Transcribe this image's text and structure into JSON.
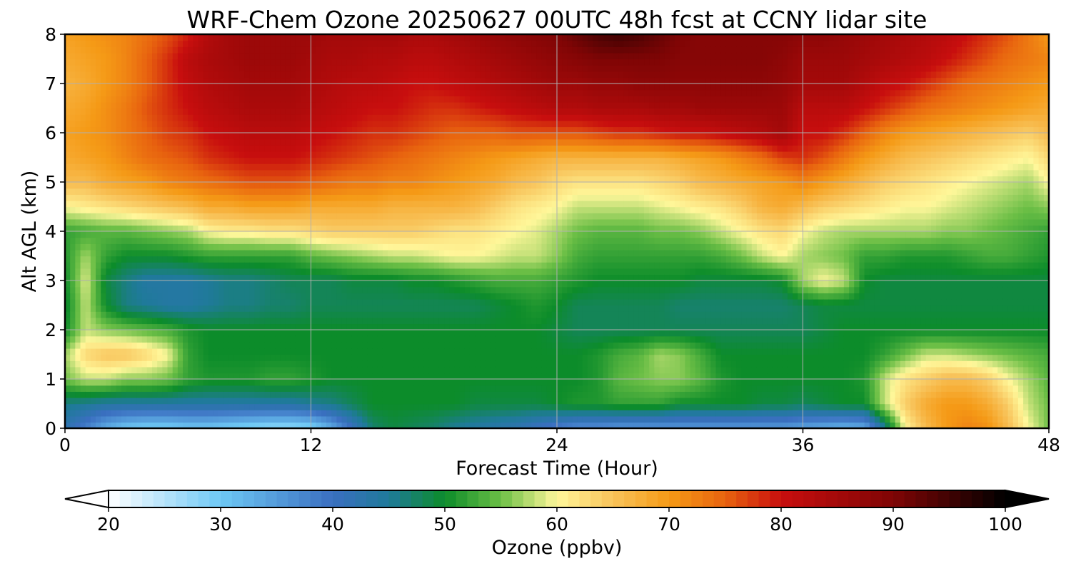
{
  "chart_data": {
    "type": "heatmap",
    "title": "WRF-Chem Ozone  20250627 00UTC 48h fcst at CCNY lidar site",
    "xlabel": "Forecast Time (Hour)",
    "ylabel": "Alt AGL (km)",
    "xlim": [
      0,
      48
    ],
    "ylim": [
      0,
      8
    ],
    "x_ticks": [
      "0",
      "12",
      "24",
      "36",
      "48"
    ],
    "y_ticks": [
      "0",
      "1",
      "2",
      "3",
      "4",
      "5",
      "6",
      "7",
      "8"
    ],
    "grid": true,
    "x_hours": [
      0,
      1,
      2,
      3,
      4,
      5,
      6,
      7,
      8,
      9,
      10,
      11,
      12,
      13,
      14,
      15,
      16,
      17,
      18,
      19,
      20,
      21,
      22,
      23,
      24,
      25,
      26,
      27,
      28,
      29,
      30,
      31,
      32,
      33,
      34,
      35,
      36,
      37,
      38,
      39,
      40,
      41,
      42,
      43,
      44,
      45,
      46,
      47,
      48
    ],
    "y_km": [
      0,
      0.5,
      1,
      1.5,
      2,
      2.5,
      3,
      3.5,
      4,
      4.5,
      5,
      5.5,
      6,
      6.5,
      7,
      7.5,
      8
    ],
    "ozone_ppbv": [
      [
        42,
        38,
        33,
        30,
        29,
        29,
        30,
        30,
        29,
        28,
        27,
        27,
        28,
        33,
        40,
        47,
        49,
        48,
        47,
        45,
        44,
        43,
        42,
        40,
        38,
        36,
        36,
        35,
        35,
        35,
        35,
        35,
        35,
        35,
        35,
        35,
        34,
        33,
        32,
        33,
        45,
        60,
        66,
        70,
        72,
        71,
        66,
        60,
        55
      ],
      [
        46,
        45,
        44,
        44,
        44,
        44,
        44,
        44,
        44,
        44,
        44,
        44,
        45,
        46,
        48,
        50,
        50,
        50,
        50,
        50,
        49,
        49,
        49,
        49,
        50,
        51,
        51,
        52,
        52,
        52,
        50,
        50,
        50,
        50,
        49,
        49,
        48,
        49,
        50,
        50,
        58,
        64,
        68,
        70,
        70,
        68,
        64,
        58,
        55
      ],
      [
        55,
        58,
        58,
        56,
        56,
        55,
        52,
        51,
        51,
        51,
        52,
        52,
        51,
        50,
        50,
        50,
        50,
        50,
        50,
        50,
        50,
        50,
        50,
        50,
        50,
        50,
        51,
        54,
        55,
        56,
        56,
        54,
        51,
        50,
        50,
        50,
        50,
        50,
        50,
        51,
        58,
        62,
        64,
        66,
        66,
        64,
        60,
        57,
        54
      ],
      [
        57,
        63,
        65,
        65,
        63,
        60,
        52,
        50,
        50,
        50,
        50,
        50,
        50,
        50,
        50,
        50,
        50,
        50,
        50,
        50,
        50,
        50,
        50,
        50,
        50,
        50,
        51,
        53,
        54,
        57,
        56,
        53,
        50,
        50,
        50,
        50,
        50,
        50,
        50,
        50,
        52,
        55,
        58,
        58,
        57,
        56,
        55,
        54,
        53
      ],
      [
        50,
        58,
        56,
        55,
        54,
        53,
        51,
        50,
        50,
        50,
        50,
        50,
        50,
        50,
        50,
        50,
        50,
        50,
        50,
        50,
        50,
        50,
        50,
        50,
        49,
        48,
        48,
        48,
        48,
        48,
        48,
        48,
        48,
        48,
        48,
        48,
        48,
        49,
        50,
        50,
        50,
        50,
        50,
        50,
        50,
        50,
        50,
        50,
        50
      ],
      [
        49,
        58,
        50,
        46,
        45,
        44,
        44,
        45,
        46,
        46,
        47,
        47,
        48,
        48,
        48,
        48,
        48,
        48,
        48,
        48,
        48,
        49,
        50,
        51,
        50,
        48,
        48,
        48,
        48,
        48,
        47,
        47,
        47,
        47,
        47,
        47,
        48,
        49,
        49,
        49,
        49,
        49,
        49,
        49,
        49,
        49,
        49,
        49,
        49
      ],
      [
        50,
        59,
        49,
        46,
        44,
        44,
        44,
        45,
        46,
        46,
        47,
        48,
        48,
        48,
        49,
        49,
        49,
        50,
        50,
        51,
        52,
        53,
        53,
        53,
        52,
        51,
        50,
        50,
        50,
        50,
        50,
        49,
        49,
        49,
        49,
        50,
        57,
        60,
        58,
        50,
        49,
        49,
        49,
        49,
        49,
        49,
        49,
        49,
        49
      ],
      [
        51,
        57,
        52,
        50,
        50,
        50,
        51,
        52,
        52,
        52,
        52,
        52,
        54,
        55,
        56,
        57,
        58,
        58,
        59,
        60,
        60,
        59,
        58,
        58,
        56,
        53,
        52,
        52,
        52,
        52,
        52,
        52,
        53,
        55,
        58,
        60,
        57,
        56,
        55,
        52,
        52,
        51,
        51,
        51,
        52,
        53,
        53,
        52,
        51
      ],
      [
        52,
        53,
        54,
        54,
        55,
        56,
        57,
        60,
        61,
        61,
        62,
        62,
        63,
        64,
        64,
        64,
        64,
        64,
        63,
        62,
        62,
        61,
        60,
        59,
        57,
        55,
        54,
        54,
        54,
        55,
        55,
        56,
        58,
        60,
        62,
        63,
        60,
        58,
        57,
        57,
        57,
        57,
        57,
        56,
        56,
        55,
        54,
        53,
        52
      ],
      [
        60,
        61,
        62,
        63,
        64,
        65,
        66,
        68,
        68,
        69,
        69,
        69,
        68,
        68,
        68,
        68,
        67,
        67,
        67,
        67,
        66,
        64,
        62,
        61,
        60,
        58,
        58,
        58,
        58,
        59,
        60,
        61,
        62,
        64,
        67,
        68,
        66,
        64,
        63,
        62,
        61,
        60,
        60,
        59,
        58,
        57,
        56,
        55,
        56
      ],
      [
        66,
        66,
        68,
        69,
        70,
        72,
        73,
        74,
        75,
        76,
        76,
        76,
        75,
        74,
        73,
        73,
        72,
        72,
        71,
        70,
        69,
        68,
        66,
        65,
        63,
        62,
        62,
        62,
        62,
        63,
        64,
        66,
        67,
        68,
        69,
        70,
        72,
        70,
        68,
        66,
        64,
        63,
        62,
        61,
        60,
        59,
        58,
        57,
        60
      ],
      [
        68,
        69,
        70,
        72,
        74,
        75,
        76,
        78,
        79,
        80,
        80,
        80,
        79,
        78,
        77,
        76,
        75,
        74,
        73,
        72,
        71,
        70,
        69,
        68,
        67,
        67,
        67,
        67,
        67,
        67,
        68,
        69,
        70,
        72,
        74,
        77,
        78,
        76,
        73,
        70,
        68,
        66,
        65,
        64,
        63,
        62,
        61,
        60,
        63
      ],
      [
        69,
        70,
        71,
        73,
        75,
        77,
        78,
        80,
        81,
        82,
        82,
        82,
        81,
        80,
        79,
        78,
        78,
        77,
        76,
        75,
        75,
        75,
        76,
        76,
        76,
        76,
        77,
        78,
        78,
        79,
        80,
        80,
        81,
        82,
        83,
        85,
        80,
        80,
        78,
        75,
        72,
        70,
        69,
        68,
        67,
        66,
        65,
        64,
        66
      ],
      [
        68,
        69,
        71,
        73,
        76,
        78,
        80,
        82,
        83,
        84,
        84,
        84,
        83,
        82,
        81,
        80,
        80,
        79,
        78,
        78,
        79,
        80,
        81,
        82,
        83,
        83,
        84,
        84,
        84,
        85,
        85,
        86,
        86,
        86,
        86,
        86,
        82,
        82,
        82,
        80,
        78,
        76,
        74,
        73,
        72,
        71,
        70,
        69,
        68
      ],
      [
        67,
        68,
        70,
        72,
        75,
        78,
        81,
        83,
        84,
        85,
        85,
        85,
        84,
        83,
        82,
        82,
        81,
        80,
        80,
        81,
        82,
        83,
        84,
        85,
        86,
        86,
        87,
        87,
        88,
        88,
        88,
        88,
        88,
        88,
        88,
        87,
        85,
        85,
        85,
        83,
        81,
        80,
        78,
        76,
        74,
        73,
        72,
        71,
        70
      ],
      [
        68,
        69,
        70,
        72,
        75,
        78,
        82,
        84,
        85,
        86,
        86,
        86,
        85,
        84,
        84,
        83,
        83,
        82,
        82,
        83,
        84,
        85,
        86,
        87,
        88,
        89,
        90,
        90,
        90,
        90,
        89,
        89,
        89,
        89,
        89,
        88,
        86,
        86,
        86,
        85,
        84,
        83,
        82,
        80,
        78,
        76,
        74,
        73,
        72
      ],
      [
        69,
        70,
        71,
        72,
        74,
        76,
        79,
        83,
        85,
        86,
        86,
        86,
        86,
        85,
        85,
        85,
        85,
        84,
        84,
        85,
        86,
        87,
        88,
        89,
        90,
        92,
        94,
        95,
        94,
        92,
        90,
        89,
        89,
        89,
        89,
        89,
        88,
        88,
        87,
        86,
        85,
        84,
        83,
        82,
        80,
        78,
        76,
        73,
        70
      ]
    ],
    "colorbar": {
      "label": "Ozone  (ppbv)",
      "min": 20,
      "max": 100,
      "ticks": [
        "20",
        "30",
        "40",
        "50",
        "60",
        "70",
        "80",
        "90",
        "100"
      ],
      "extend": "both",
      "stops": [
        {
          "v": 20,
          "c": "#ffffff"
        },
        {
          "v": 30,
          "c": "#6ec8f5"
        },
        {
          "v": 40,
          "c": "#3a6fc0"
        },
        {
          "v": 45,
          "c": "#1f7a9a"
        },
        {
          "v": 50,
          "c": "#0c8c2a"
        },
        {
          "v": 55,
          "c": "#6cbf46"
        },
        {
          "v": 60,
          "c": "#fff79a"
        },
        {
          "v": 65,
          "c": "#f8c35a"
        },
        {
          "v": 70,
          "c": "#f59a16"
        },
        {
          "v": 75,
          "c": "#e8630f"
        },
        {
          "v": 80,
          "c": "#c80e0e"
        },
        {
          "v": 90,
          "c": "#7f0505"
        },
        {
          "v": 100,
          "c": "#000000"
        }
      ]
    }
  }
}
